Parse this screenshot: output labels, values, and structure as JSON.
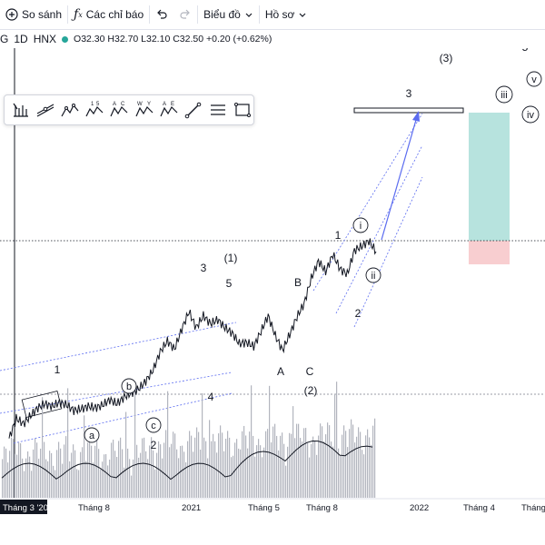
{
  "toolbar": {
    "compare": "So sánh",
    "indicators": "Các chỉ báo",
    "chart_type": "Biểu đồ",
    "profile": "Hồ sơ"
  },
  "symbol": {
    "name_partial": "G",
    "interval": "1D",
    "exchange": "HNX",
    "ohlc": "O32.30 H32.70 L32.10 C32.50 +0.20 (+0.62%)",
    "status_color": "#26a69a"
  },
  "drawing_tools": [
    "trend-angle-tool",
    "trend-line-tool",
    "abcd-pattern-tool",
    "triangle-pattern-tool",
    "wxy-pattern-tool",
    "ace-pattern-tool",
    "brush-tool",
    "parallel-lines-tool",
    "rectangle-tool"
  ],
  "chart_data": {
    "type": "line",
    "x_axis_labels": [
      "Tháng 3 '20",
      "Tháng 8",
      "2021",
      "Tháng 5",
      "Tháng 8",
      "2022",
      "Tháng 4",
      "Tháng"
    ],
    "wave_labels": {
      "major_1": "1",
      "major_3": "3",
      "major_4": "4",
      "major_5": "5",
      "minor_2": "2",
      "minor_2b": "2",
      "b_top": "B",
      "a_low": "A",
      "c_low": "C",
      "deg_1": "(1)",
      "deg_2": "(2)",
      "deg_3": "(3)",
      "target_3": "3",
      "target_5": "5",
      "wave_1_new": "1",
      "circ_a": "a",
      "circ_b": "b",
      "circ_c": "c",
      "circ_i": "i",
      "circ_ii": "ii",
      "circ_iii": "iii",
      "circ_iv": "iv",
      "circ_v": "v"
    },
    "colors": {
      "price": "#131722",
      "channel": "#5b6cf0",
      "volume": "#b2b5be",
      "profit_zone": "#9fd9d3",
      "loss_zone": "#f7c5c8"
    },
    "prices": [
      24.5,
      26.0,
      25.6,
      26.2,
      26.8,
      27.1,
      26.9,
      27.2,
      27.0,
      26.6,
      26.7,
      26.9,
      26.8,
      27.0,
      27.4,
      27.1,
      27.6,
      27.9,
      28.2,
      28.8,
      29.6,
      31.0,
      31.8,
      31.2,
      32.7,
      34.0,
      32.8,
      33.7,
      33.1,
      33.4,
      32.8,
      32.4,
      31.6,
      31.7,
      31.4,
      32.5,
      33.7,
      32.2,
      31.1,
      32.3,
      33.6,
      34.6,
      36.5,
      37.8,
      37.0,
      38.3,
      37.2,
      36.8,
      38.6,
      38.9,
      39.3,
      38.5
    ]
  }
}
